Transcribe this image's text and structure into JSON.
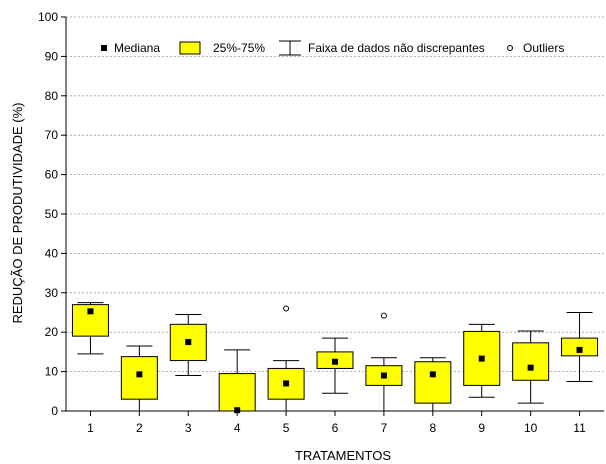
{
  "chart_data": {
    "type": "boxplot",
    "xlabel": "TRATAMENTOS",
    "ylabel": "REDUÇÃO DE PRODUTIVIDADE (%)",
    "ylim": [
      0,
      100
    ],
    "yticks": [
      0,
      10,
      20,
      30,
      40,
      50,
      60,
      70,
      80,
      90,
      100
    ],
    "grid": "horizontal-dashed",
    "box_color": "#ffff00",
    "legend": {
      "placement": "top",
      "items": [
        {
          "symbol": "median",
          "label": "Mediana"
        },
        {
          "symbol": "box",
          "label": "25%-75%"
        },
        {
          "symbol": "whisker",
          "label": "Faixa de dados não discrepantes"
        },
        {
          "symbol": "outlier",
          "label": "Outliers"
        }
      ]
    },
    "categories": [
      "1",
      "2",
      "3",
      "4",
      "5",
      "6",
      "7",
      "8",
      "9",
      "10",
      "11"
    ],
    "boxes": [
      {
        "category": "1",
        "min": 14.5,
        "q1": 19.0,
        "median": 25.3,
        "q3": 27.0,
        "max": 27.5,
        "outliers": []
      },
      {
        "category": "2",
        "min": 0.0,
        "q1": 3.0,
        "median": 9.3,
        "q3": 13.8,
        "max": 16.5,
        "outliers": []
      },
      {
        "category": "3",
        "min": 9.0,
        "q1": 12.8,
        "median": 17.5,
        "q3": 22.0,
        "max": 24.5,
        "outliers": []
      },
      {
        "category": "4",
        "min": 0.0,
        "q1": 0.0,
        "median": 0.2,
        "q3": 9.5,
        "max": 15.5,
        "outliers": []
      },
      {
        "category": "5",
        "min": 0.0,
        "q1": 3.0,
        "median": 7.0,
        "q3": 10.8,
        "max": 12.8,
        "outliers": [
          26.0
        ]
      },
      {
        "category": "6",
        "min": 4.5,
        "q1": 10.8,
        "median": 12.5,
        "q3": 15.0,
        "max": 18.5,
        "outliers": []
      },
      {
        "category": "7",
        "min": 0.0,
        "q1": 6.5,
        "median": 9.0,
        "q3": 11.5,
        "max": 13.5,
        "outliers": [
          24.2
        ]
      },
      {
        "category": "8",
        "min": 0.0,
        "q1": 2.0,
        "median": 9.3,
        "q3": 12.5,
        "max": 13.5,
        "outliers": []
      },
      {
        "category": "9",
        "min": 3.5,
        "q1": 6.5,
        "median": 13.3,
        "q3": 20.2,
        "max": 22.0,
        "outliers": []
      },
      {
        "category": "10",
        "min": 2.0,
        "q1": 7.8,
        "median": 11.0,
        "q3": 17.3,
        "max": 20.3,
        "outliers": []
      },
      {
        "category": "11",
        "min": 7.5,
        "q1": 14.0,
        "median": 15.5,
        "q3": 18.5,
        "max": 25.0,
        "outliers": []
      }
    ]
  }
}
